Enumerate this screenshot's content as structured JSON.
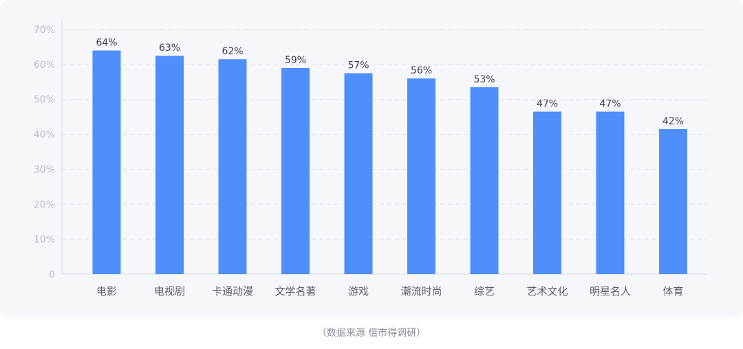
{
  "chart_data": {
    "type": "bar",
    "categories": [
      "电影",
      "电视剧",
      "卡通动漫",
      "文学名著",
      "游戏",
      "潮流时尚",
      "综艺",
      "艺术文化",
      "明星名人",
      "体育"
    ],
    "values": [
      64,
      63,
      62,
      59,
      57,
      56,
      53,
      47,
      47,
      42
    ],
    "data_labels": [
      "64%",
      "63%",
      "62%",
      "59%",
      "57%",
      "56%",
      "53%",
      "47%",
      "47%",
      "42%"
    ],
    "bar_values": [
      64,
      62.5,
      61.5,
      59,
      57.5,
      56,
      53.5,
      46.5,
      46.5,
      41.5
    ],
    "ylim": [
      0,
      70
    ],
    "yticks": [
      0,
      10,
      20,
      30,
      40,
      50,
      60,
      70
    ],
    "ytick_labels": [
      "0",
      "10%",
      "20%",
      "30%",
      "40%",
      "50%",
      "60%",
      "70%"
    ],
    "grid": true,
    "grid_style": "dashed",
    "bar_color": "#4f8ffc",
    "title": "",
    "xlabel": "",
    "ylabel": ""
  },
  "footer": {
    "source": "（数据来源  倍市得调研）"
  }
}
